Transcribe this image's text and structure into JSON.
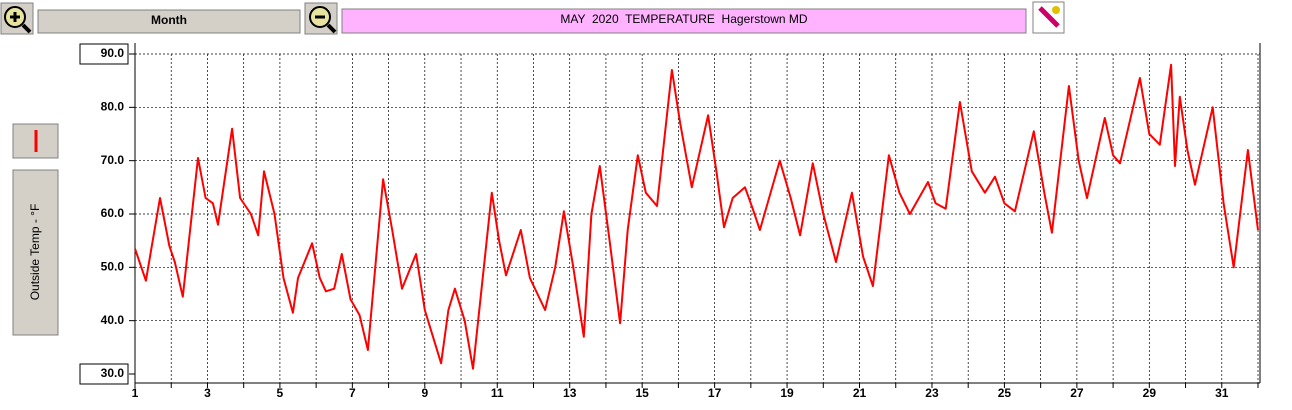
{
  "controls": {
    "period": "Month"
  },
  "chart_data": {
    "type": "line",
    "title": "MAY  2020  TEMPERATURE  Hagerstown MD",
    "ylabel": "Outside Temp - °F",
    "xlim": [
      1,
      32
    ],
    "xticks": [
      1,
      3,
      5,
      7,
      9,
      11,
      13,
      15,
      17,
      19,
      21,
      23,
      25,
      27,
      29,
      31
    ],
    "x_minor_ticks": [
      2,
      4,
      6,
      8,
      10,
      12,
      14,
      16,
      18,
      20,
      22,
      24,
      26,
      28,
      30,
      32
    ],
    "ylim": [
      30,
      90
    ],
    "yticks": [
      {
        "value": 30,
        "label": "30.0"
      },
      {
        "value": 40,
        "label": "40.0"
      },
      {
        "value": 50,
        "label": "50.0"
      },
      {
        "value": 60,
        "label": "60.0"
      },
      {
        "value": 70,
        "label": "70.0"
      },
      {
        "value": 80,
        "label": "80.0"
      },
      {
        "value": 90,
        "label": "90.0"
      }
    ],
    "grid": true,
    "color": "#ff0000",
    "x": [
      1.0,
      1.3,
      1.69,
      1.95,
      2.1,
      2.32,
      2.74,
      2.95,
      3.15,
      3.29,
      3.68,
      3.9,
      4.2,
      4.4,
      4.56,
      4.85,
      5.1,
      5.36,
      5.5,
      5.89,
      6.1,
      6.27,
      6.5,
      6.71,
      6.95,
      7.2,
      7.43,
      7.85,
      8.1,
      8.37,
      8.76,
      9.0,
      9.45,
      9.65,
      9.83,
      10.1,
      10.33,
      10.55,
      10.85,
      11.05,
      11.24,
      11.65,
      11.9,
      12.32,
      12.6,
      12.84,
      13.1,
      13.39,
      13.6,
      13.83,
      14.1,
      14.39,
      14.6,
      14.88,
      15.1,
      15.41,
      15.82,
      16.05,
      16.37,
      16.82,
      17.05,
      17.26,
      17.5,
      17.84,
      18.05,
      18.25,
      18.8,
      19.1,
      19.36,
      19.71,
      20.0,
      20.35,
      20.79,
      21.1,
      21.37,
      21.81,
      22.1,
      22.39,
      22.89,
      23.1,
      23.38,
      23.77,
      24.1,
      24.46,
      24.74,
      25.0,
      25.29,
      25.81,
      26.1,
      26.31,
      26.78,
      27.05,
      27.28,
      27.77,
      28.0,
      28.19,
      28.74,
      29.0,
      29.29,
      29.6,
      29.71,
      29.84,
      30.05,
      30.26,
      30.75,
      31.05,
      31.33,
      31.72,
      32.0
    ],
    "values": [
      53.5,
      47.5,
      63,
      54,
      51,
      44.5,
      70.5,
      63,
      62,
      58,
      76,
      63,
      60,
      56,
      68,
      60,
      48,
      41.5,
      48,
      54.5,
      48,
      45.5,
      46,
      52.5,
      44,
      41,
      34.5,
      66.5,
      57,
      46,
      52.5,
      42,
      32,
      42,
      46,
      40,
      31,
      45,
      64,
      55,
      48.5,
      57,
      48,
      42,
      50,
      60.5,
      50,
      37,
      60,
      69,
      55,
      39.5,
      57,
      71,
      64,
      61.5,
      87,
      77,
      65,
      78.5,
      68,
      57.5,
      63,
      65,
      61,
      57,
      70,
      63,
      56,
      69.5,
      60,
      51,
      64,
      52,
      46.5,
      71,
      64,
      60,
      66,
      62,
      61,
      81,
      68,
      64,
      67,
      62,
      60.5,
      75.5,
      64,
      56.5,
      84,
      70,
      63,
      78,
      71,
      69.5,
      85.5,
      75,
      73,
      88,
      69,
      82,
      72,
      65.5,
      80,
      62,
      50,
      72,
      57
    ]
  }
}
